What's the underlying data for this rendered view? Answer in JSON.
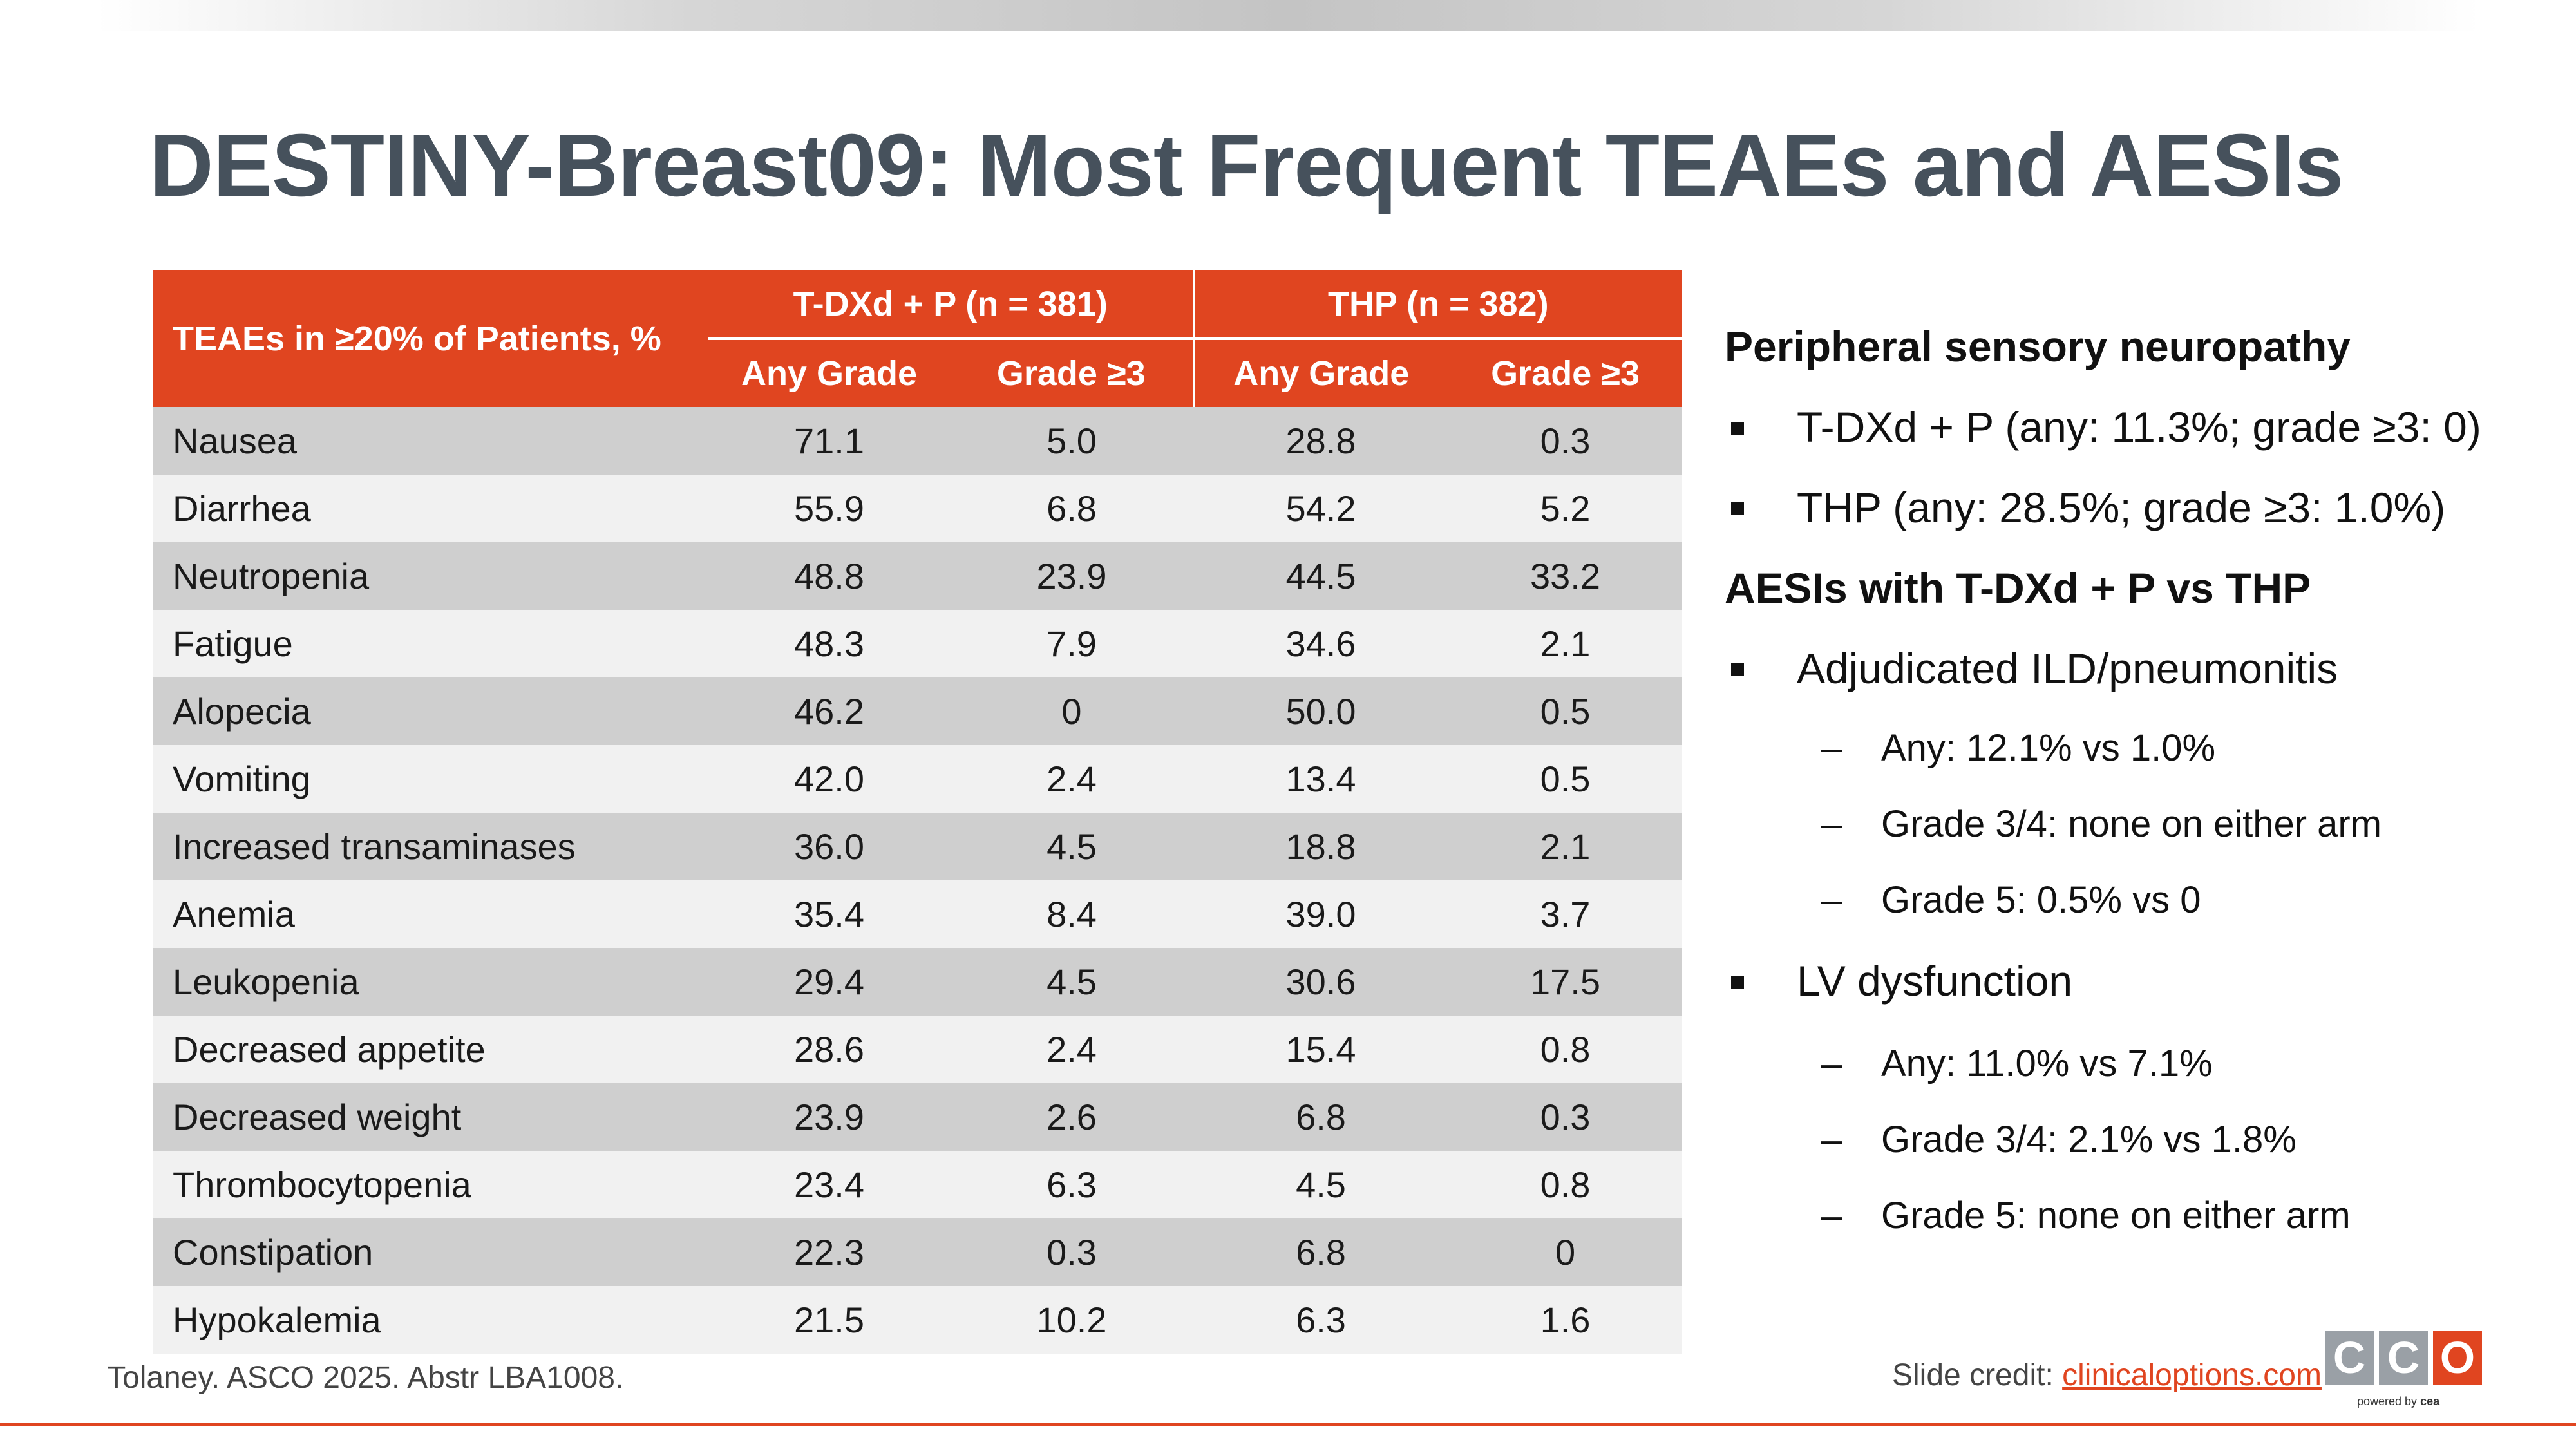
{
  "slide": {
    "title": "DESTINY-Breast09: Most Frequent TEAEs and AESIs",
    "accent_color": "#e04520",
    "title_color": "#46515c"
  },
  "table": {
    "stub_header": "TEAEs in ≥20% of Patients, %",
    "groups": [
      "T-DXd + P (n = 381)",
      "THP (n = 382)"
    ],
    "subheaders": [
      "Any Grade",
      "Grade ≥3",
      "Any Grade",
      "Grade ≥3"
    ],
    "rows": [
      {
        "label": "Nausea",
        "values": [
          "71.1",
          "5.0",
          "28.8",
          "0.3"
        ]
      },
      {
        "label": "Diarrhea",
        "values": [
          "55.9",
          "6.8",
          "54.2",
          "5.2"
        ]
      },
      {
        "label": "Neutropenia",
        "values": [
          "48.8",
          "23.9",
          "44.5",
          "33.2"
        ]
      },
      {
        "label": "Fatigue",
        "values": [
          "48.3",
          "7.9",
          "34.6",
          "2.1"
        ]
      },
      {
        "label": "Alopecia",
        "values": [
          "46.2",
          "0",
          "50.0",
          "0.5"
        ]
      },
      {
        "label": "Vomiting",
        "values": [
          "42.0",
          "2.4",
          "13.4",
          "0.5"
        ]
      },
      {
        "label": "Increased transaminases",
        "values": [
          "36.0",
          "4.5",
          "18.8",
          "2.1"
        ]
      },
      {
        "label": "Anemia",
        "values": [
          "35.4",
          "8.4",
          "39.0",
          "3.7"
        ]
      },
      {
        "label": "Leukopenia",
        "values": [
          "29.4",
          "4.5",
          "30.6",
          "17.5"
        ]
      },
      {
        "label": "Decreased appetite",
        "values": [
          "28.6",
          "2.4",
          "15.4",
          "0.8"
        ]
      },
      {
        "label": "Decreased weight",
        "values": [
          "23.9",
          "2.6",
          "6.8",
          "0.3"
        ]
      },
      {
        "label": "Thrombocytopenia",
        "values": [
          "23.4",
          "6.3",
          "4.5",
          "0.8"
        ]
      },
      {
        "label": "Constipation",
        "values": [
          "22.3",
          "0.3",
          "6.8",
          "0"
        ]
      },
      {
        "label": "Hypokalemia",
        "values": [
          "21.5",
          "10.2",
          "6.3",
          "1.6"
        ]
      }
    ]
  },
  "aesi": {
    "psn_heading": "Peripheral sensory neuropathy",
    "psn_bullets": [
      "T-DXd + P (any: 11.3%; grade ≥3: 0)",
      "THP (any: 28.5%; grade ≥3: 1.0%)"
    ],
    "aesi_heading": "AESIs with T-DXd + P vs THP",
    "ild_label": "Adjudicated ILD/pneumonitis",
    "ild_items": [
      "Any: 12.1% vs 1.0%",
      "Grade 3/4: none on either arm",
      "Grade 5: 0.5% vs 0"
    ],
    "lv_label": "LV dysfunction",
    "lv_items": [
      "Any: 11.0% vs 7.1%",
      "Grade 3/4: 2.1% vs 1.8%",
      "Grade 5: none on either arm"
    ],
    "dash": "–"
  },
  "footer": {
    "citation": "Tolaney. ASCO 2025. Abstr LBA1008.",
    "credit_label": "Slide credit: ",
    "credit_link": "clinicaloptions.com",
    "logo_letters": [
      "C",
      "C",
      "O"
    ],
    "logo_powered": "powered by ",
    "logo_brand": "cea"
  }
}
